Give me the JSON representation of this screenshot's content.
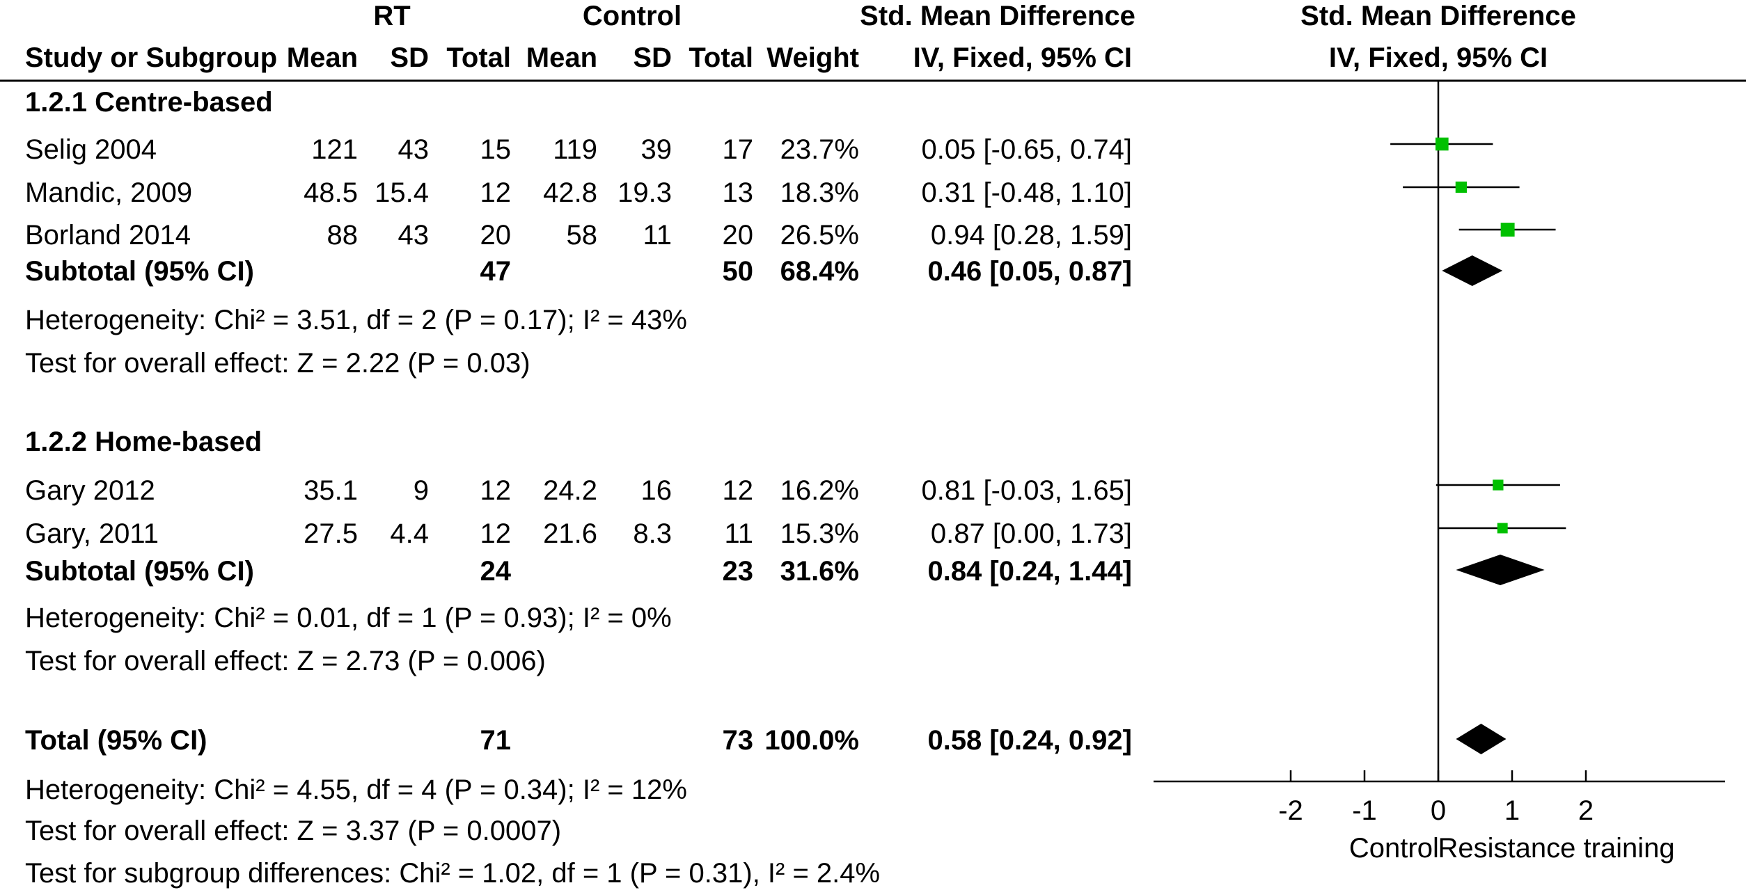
{
  "chart_data": {
    "type": "forest",
    "headers": {
      "group_rt": "RT",
      "group_control": "Control",
      "smd_col": "Std. Mean Difference",
      "smd_method": "IV, Fixed, 95% CI",
      "plot_title": "Std. Mean Difference",
      "plot_method": "IV, Fixed, 95% CI",
      "study": "Study or Subgroup",
      "mean": "Mean",
      "sd": "SD",
      "total": "Total",
      "weight": "Weight"
    },
    "subgroups": [
      {
        "name": "1.2.1 Centre-based",
        "studies": [
          {
            "study": "Selig 2004",
            "rt_mean": "121",
            "rt_sd": "43",
            "rt_total": "15",
            "c_mean": "119",
            "c_sd": "39",
            "c_total": "17",
            "weight": "23.7%",
            "ci_text": "0.05 [-0.65, 0.74]",
            "est": 0.05,
            "lo": -0.65,
            "hi": 0.74,
            "w": 23.7
          },
          {
            "study": "Mandic, 2009",
            "rt_mean": "48.5",
            "rt_sd": "15.4",
            "rt_total": "12",
            "c_mean": "42.8",
            "c_sd": "19.3",
            "c_total": "13",
            "weight": "18.3%",
            "ci_text": "0.31 [-0.48, 1.10]",
            "est": 0.31,
            "lo": -0.48,
            "hi": 1.1,
            "w": 18.3
          },
          {
            "study": "Borland 2014",
            "rt_mean": "88",
            "rt_sd": "43",
            "rt_total": "20",
            "c_mean": "58",
            "c_sd": "11",
            "c_total": "20",
            "weight": "26.5%",
            "ci_text": "0.94 [0.28, 1.59]",
            "est": 0.94,
            "lo": 0.28,
            "hi": 1.59,
            "w": 26.5
          }
        ],
        "subtotal": {
          "label": "Subtotal (95% CI)",
          "rt_total": "47",
          "c_total": "50",
          "weight": "68.4%",
          "ci_text": "0.46 [0.05, 0.87]",
          "est": 0.46,
          "lo": 0.05,
          "hi": 0.87
        },
        "heterogeneity": "Heterogeneity: Chi² = 3.51, df = 2 (P = 0.17); I² = 43%",
        "overall": "Test for overall effect: Z = 2.22 (P = 0.03)"
      },
      {
        "name": "1.2.2 Home-based",
        "studies": [
          {
            "study": "Gary 2012",
            "rt_mean": "35.1",
            "rt_sd": "9",
            "rt_total": "12",
            "c_mean": "24.2",
            "c_sd": "16",
            "c_total": "12",
            "weight": "16.2%",
            "ci_text": "0.81 [-0.03, 1.65]",
            "est": 0.81,
            "lo": -0.03,
            "hi": 1.65,
            "w": 16.2
          },
          {
            "study": "Gary, 2011",
            "rt_mean": "27.5",
            "rt_sd": "4.4",
            "rt_total": "12",
            "c_mean": "21.6",
            "c_sd": "8.3",
            "c_total": "11",
            "weight": "15.3%",
            "ci_text": "0.87 [0.00, 1.73]",
            "est": 0.87,
            "lo": 0.0,
            "hi": 1.73,
            "w": 15.3
          }
        ],
        "subtotal": {
          "label": "Subtotal (95% CI)",
          "rt_total": "24",
          "c_total": "23",
          "weight": "31.6%",
          "ci_text": "0.84 [0.24, 1.44]",
          "est": 0.84,
          "lo": 0.24,
          "hi": 1.44
        },
        "heterogeneity": "Heterogeneity: Chi² = 0.01, df = 1 (P = 0.93); I² = 0%",
        "overall": "Test for overall effect: Z = 2.73 (P = 0.006)"
      }
    ],
    "total": {
      "label": "Total (95% CI)",
      "rt_total": "71",
      "c_total": "73",
      "weight": "100.0%",
      "ci_text": "0.58 [0.24, 0.92]",
      "est": 0.58,
      "lo": 0.24,
      "hi": 0.92
    },
    "total_heterogeneity": "Heterogeneity: Chi² = 4.55, df = 4 (P = 0.34); I² = 12%",
    "total_overall": "Test for overall effect: Z = 3.37 (P = 0.0007)",
    "subgroup_differences": "Test for subgroup differences: Chi² = 1.02, df = 1 (P = 0.31), I² = 2.4%",
    "x_axis": {
      "ticks": [
        -2,
        -1,
        0,
        1,
        2
      ],
      "tick_labels": [
        "-2",
        "-1",
        "0",
        "1",
        "2"
      ],
      "xlim": [
        -4,
        4
      ],
      "label_left": "Control",
      "label_right": "Resistance training"
    },
    "colors": {
      "study_marker": "#00c000",
      "summary": "#000000"
    }
  }
}
